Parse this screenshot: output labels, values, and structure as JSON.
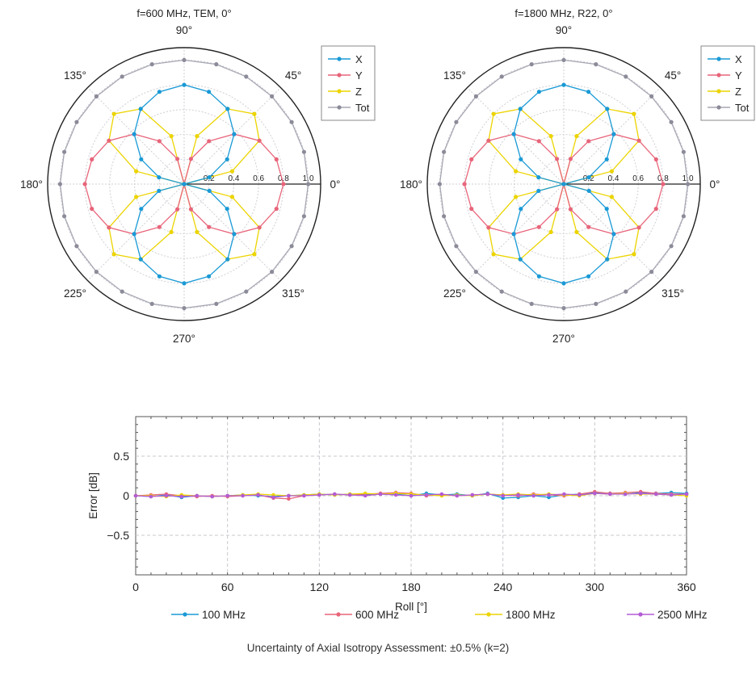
{
  "footnote": "Uncertainty of Axial Isotropy Assessment: ±0.5% (k=2)",
  "chart_data": [
    {
      "type": "polar",
      "title": "f=600 MHz, TEM, 0°",
      "angle_labels": [
        "0°",
        "45°",
        "90°",
        "135°",
        "180°",
        "225°",
        "270°",
        "315°"
      ],
      "radial_ticks": [
        "0.2",
        "0.4",
        "0.6",
        "0.8",
        "1.0"
      ],
      "rlim": [
        0,
        1.1
      ],
      "angle_step_deg": 15,
      "legend": "right",
      "grid": true,
      "series": [
        {
          "name": "X",
          "color": "#1a9ad6",
          "marker_color": "#1a9ad6",
          "values": [
            0.0,
            0.21,
            0.4,
            0.57,
            0.7,
            0.77,
            0.8,
            0.77,
            0.7,
            0.57,
            0.4,
            0.21,
            0.0,
            0.21,
            0.4,
            0.57,
            0.7,
            0.77,
            0.8,
            0.77,
            0.7,
            0.57,
            0.4,
            0.21
          ]
        },
        {
          "name": "Y",
          "color": "#e8657a",
          "marker_color": "#e8657a",
          "values": [
            0.8,
            0.77,
            0.7,
            0.57,
            0.4,
            0.21,
            0.0,
            0.21,
            0.4,
            0.57,
            0.7,
            0.77,
            0.8,
            0.77,
            0.7,
            0.57,
            0.4,
            0.21,
            0.0,
            0.21,
            0.4,
            0.57,
            0.7,
            0.77
          ]
        },
        {
          "name": "Z",
          "color": "#ecd400",
          "marker_color": "#ecd400",
          "values": [
            0.0,
            0.4,
            0.7,
            0.8,
            0.7,
            0.4,
            0.0,
            0.4,
            0.7,
            0.8,
            0.7,
            0.4,
            0.0,
            0.4,
            0.7,
            0.8,
            0.7,
            0.4,
            0.0,
            0.4,
            0.7,
            0.8,
            0.7,
            0.4
          ]
        },
        {
          "name": "Tot",
          "color": "#a7a7b3",
          "marker_color": "#8b8b99",
          "values": [
            1.0,
            1.0,
            1.0,
            1.0,
            1.0,
            1.0,
            1.0,
            1.0,
            1.0,
            1.0,
            1.0,
            1.0,
            1.0,
            1.0,
            1.0,
            1.0,
            1.0,
            1.0,
            1.0,
            1.0,
            1.0,
            1.0,
            1.0,
            1.0
          ]
        }
      ]
    },
    {
      "type": "polar",
      "title": "f=1800 MHz, R22, 0°",
      "angle_labels": [
        "0°",
        "45°",
        "90°",
        "135°",
        "180°",
        "225°",
        "270°",
        "315°"
      ],
      "radial_ticks": [
        "0.2",
        "0.4",
        "0.6",
        "0.8",
        "1.0"
      ],
      "rlim": [
        0,
        1.1
      ],
      "angle_step_deg": 15,
      "legend": "right",
      "grid": true,
      "series": [
        {
          "name": "X",
          "color": "#1a9ad6",
          "marker_color": "#1a9ad6",
          "values": [
            0.0,
            0.21,
            0.4,
            0.57,
            0.7,
            0.77,
            0.8,
            0.77,
            0.7,
            0.57,
            0.4,
            0.21,
            0.0,
            0.21,
            0.4,
            0.57,
            0.7,
            0.77,
            0.8,
            0.77,
            0.7,
            0.57,
            0.4,
            0.21
          ]
        },
        {
          "name": "Y",
          "color": "#e8657a",
          "marker_color": "#e8657a",
          "values": [
            0.8,
            0.77,
            0.7,
            0.57,
            0.4,
            0.21,
            0.0,
            0.21,
            0.4,
            0.57,
            0.7,
            0.77,
            0.8,
            0.77,
            0.7,
            0.57,
            0.4,
            0.21,
            0.0,
            0.21,
            0.4,
            0.57,
            0.7,
            0.77
          ]
        },
        {
          "name": "Z",
          "color": "#ecd400",
          "marker_color": "#ecd400",
          "values": [
            0.0,
            0.4,
            0.7,
            0.8,
            0.7,
            0.4,
            0.0,
            0.4,
            0.7,
            0.8,
            0.7,
            0.4,
            0.0,
            0.4,
            0.7,
            0.8,
            0.7,
            0.4,
            0.0,
            0.4,
            0.7,
            0.8,
            0.7,
            0.4
          ]
        },
        {
          "name": "Tot",
          "color": "#a7a7b3",
          "marker_color": "#8b8b99",
          "values": [
            1.0,
            1.0,
            1.0,
            1.0,
            1.0,
            1.0,
            1.0,
            1.0,
            1.0,
            1.0,
            1.0,
            1.0,
            1.0,
            1.0,
            1.0,
            1.0,
            1.0,
            1.0,
            1.0,
            1.0,
            1.0,
            1.0,
            1.0,
            1.0
          ]
        }
      ]
    },
    {
      "type": "line",
      "title": "",
      "xlabel": "Roll [°]",
      "ylabel": "Error [dB]",
      "xlim": [
        0,
        360
      ],
      "ylim": [
        -1,
        1
      ],
      "xticks": [
        0,
        60,
        120,
        180,
        240,
        300,
        360
      ],
      "yticks": [
        -0.5,
        0,
        0.5
      ],
      "ytick_labels": [
        "−0.5",
        "0",
        "0.5"
      ],
      "grid": true,
      "legend": "bottom",
      "x": [
        0,
        10,
        20,
        30,
        40,
        50,
        60,
        70,
        80,
        90,
        100,
        110,
        120,
        130,
        140,
        150,
        160,
        170,
        180,
        190,
        200,
        210,
        220,
        230,
        240,
        250,
        260,
        270,
        280,
        290,
        300,
        310,
        320,
        330,
        340,
        350,
        360
      ],
      "series": [
        {
          "name": "100 MHz",
          "color": "#1a9ad6",
          "values": [
            0.0,
            -0.01,
            0.01,
            -0.02,
            0.0,
            -0.01,
            0.0,
            0.01,
            0.0,
            -0.01,
            0.0,
            0.01,
            0.02,
            0.01,
            0.02,
            0.01,
            0.02,
            0.02,
            0.0,
            0.03,
            0.01,
            0.02,
            0.0,
            0.03,
            -0.03,
            -0.02,
            0.0,
            -0.02,
            0.01,
            0.02,
            0.04,
            0.03,
            0.02,
            0.04,
            0.03,
            0.04,
            0.03
          ]
        },
        {
          "name": "600 MHz",
          "color": "#e8657a",
          "values": [
            0.0,
            0.01,
            0.02,
            0.0,
            -0.01,
            0.0,
            -0.01,
            0.0,
            0.01,
            -0.03,
            -0.04,
            0.0,
            0.01,
            0.02,
            0.01,
            0.02,
            0.03,
            0.04,
            0.03,
            0.0,
            0.01,
            0.0,
            0.01,
            0.02,
            0.01,
            0.0,
            0.02,
            0.01,
            0.0,
            0.02,
            0.05,
            0.03,
            0.04,
            0.05,
            0.03,
            0.02,
            0.02
          ]
        },
        {
          "name": "1800 MHz",
          "color": "#ecd400",
          "values": [
            0.0,
            0.0,
            -0.01,
            0.01,
            0.0,
            -0.01,
            0.0,
            0.01,
            0.02,
            0.01,
            0.0,
            0.01,
            0.02,
            0.01,
            0.02,
            0.03,
            0.02,
            0.03,
            0.02,
            0.01,
            0.0,
            0.01,
            0.0,
            0.02,
            0.01,
            0.02,
            0.01,
            0.02,
            0.01,
            0.0,
            0.03,
            0.02,
            0.03,
            0.02,
            0.02,
            0.01,
            0.0
          ]
        },
        {
          "name": "2500 MHz",
          "color": "#b45bd6",
          "values": [
            0.0,
            -0.01,
            0.0,
            -0.01,
            0.0,
            -0.01,
            0.0,
            0.0,
            0.01,
            -0.02,
            0.0,
            0.0,
            0.01,
            0.02,
            0.01,
            0.0,
            0.02,
            0.01,
            0.0,
            0.01,
            0.02,
            0.0,
            0.01,
            0.02,
            0.0,
            0.01,
            0.0,
            0.01,
            0.02,
            0.01,
            0.03,
            0.02,
            0.02,
            0.03,
            0.02,
            0.01,
            0.02
          ]
        }
      ]
    }
  ]
}
